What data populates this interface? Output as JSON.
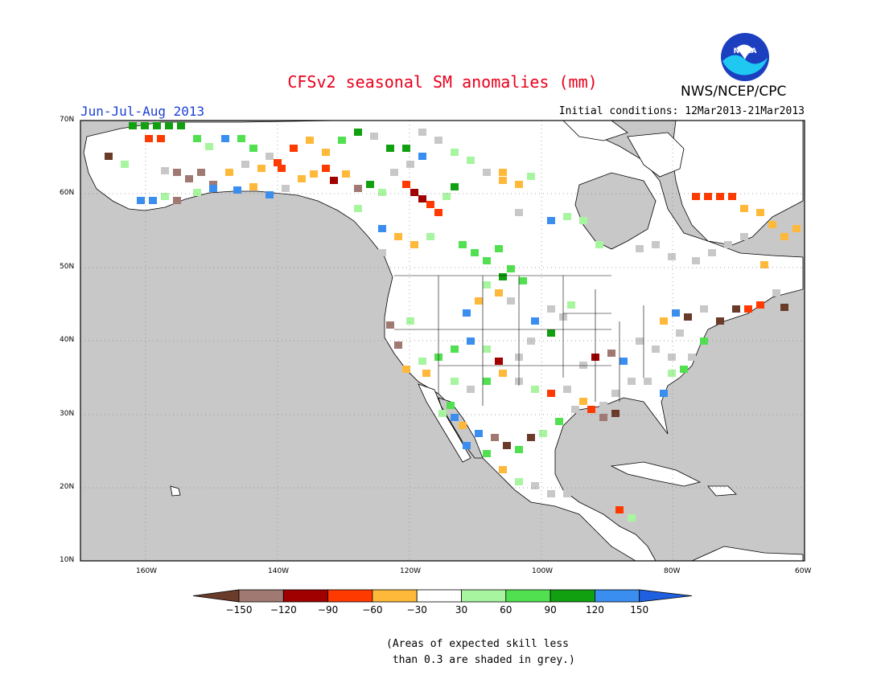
{
  "header": {
    "title": "CFSv2 seasonal SM anomalies (mm)",
    "agency": "NWS/NCEP/CPC",
    "logo_text": "NOAA",
    "period": "Jun-Jul-Aug 2013",
    "initial_conditions": "Initial conditions: 12Mar2013-21Mar2013"
  },
  "map": {
    "lat_labels": [
      "70N",
      "60N",
      "50N",
      "40N",
      "30N",
      "20N",
      "10N"
    ],
    "lon_labels": [
      "160W",
      "140W",
      "120W",
      "100W",
      "80W",
      "60W"
    ],
    "colors": {
      "ocean": "#c8c8c8",
      "land": "#ffffff",
      "grey_skill": "#c8c8c8"
    }
  },
  "legend": {
    "labels": [
      "-150",
      "-120",
      "-90",
      "-60",
      "-30",
      "30",
      "60",
      "90",
      "120",
      "150"
    ],
    "colors": [
      "#6b3b2a",
      "#a07a72",
      "#a00000",
      "#ff3a00",
      "#ffb93a",
      "#ffffff",
      "#a8f5a0",
      "#50e050",
      "#10a010",
      "#3a8ef0",
      "#1f60e0"
    ]
  },
  "note": {
    "line1": "(Areas of expected skill less",
    "line2": " than 0.3 are shaded in grey.)"
  }
}
